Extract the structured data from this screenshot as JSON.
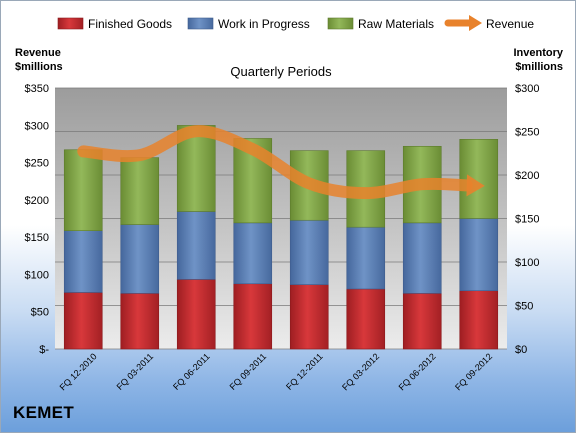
{
  "brand": "KEMET",
  "chart_data": {
    "type": "bar",
    "subtitle": "Quarterly Periods",
    "ylabel_left": [
      "Revenue",
      "$millions"
    ],
    "ylabel_right": [
      "Inventory",
      "$millions"
    ],
    "ylim_left": [
      0,
      350
    ],
    "ylim_right": [
      0,
      300
    ],
    "yticks_left": [
      "$-",
      "$50",
      "$100",
      "$150",
      "$200",
      "$250",
      "$300",
      "$350"
    ],
    "yticks_right": [
      "$0",
      "$50",
      "$100",
      "$150",
      "$200",
      "$250",
      "$300"
    ],
    "categories": [
      "FQ 12-2010",
      "FQ 03-2011",
      "FQ 06-2011",
      "FQ 09-2011",
      "FQ 12-2011",
      "FQ 03-2012",
      "FQ 06-2012",
      "FQ 09-2012"
    ],
    "series": [
      {
        "name": "Finished Goods",
        "axis": "right",
        "values": [
          65,
          64,
          80,
          75,
          74,
          69,
          64,
          67
        ],
        "color": "#c0282c"
      },
      {
        "name": "Work in Progress",
        "axis": "right",
        "values": [
          71,
          79,
          78,
          70,
          74,
          71,
          81,
          83
        ],
        "color": "#5b7fb4"
      },
      {
        "name": "Raw Materials",
        "axis": "right",
        "values": [
          93,
          77,
          99,
          97,
          80,
          88,
          88,
          91
        ],
        "color": "#80a444"
      },
      {
        "name": "Revenue",
        "axis": "left",
        "type": "line",
        "values": [
          265,
          260,
          292,
          268,
          222,
          209,
          221,
          219
        ],
        "color": "#e8822c"
      }
    ],
    "legend_position": "top",
    "grid": true
  }
}
